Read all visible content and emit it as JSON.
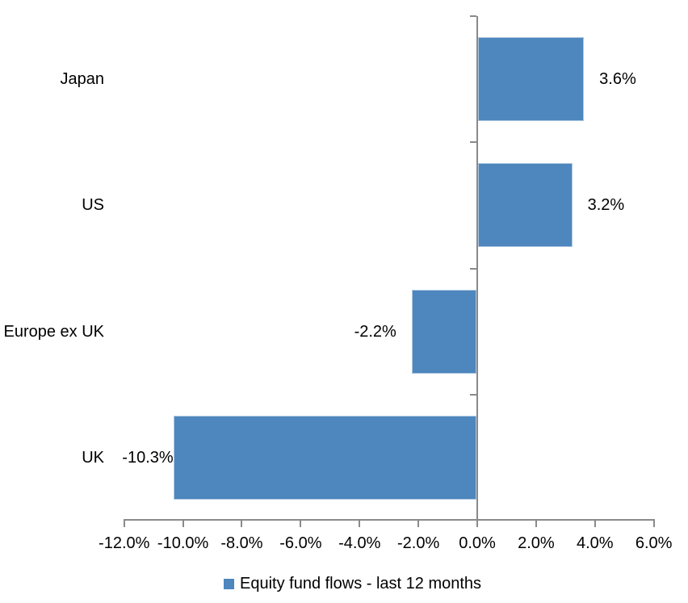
{
  "chart_data": {
    "type": "bar",
    "orientation": "horizontal",
    "title": "",
    "categories": [
      "Japan",
      "US",
      "Europe ex UK",
      "UK"
    ],
    "series": [
      {
        "name": "Equity fund flows - last 12 months",
        "values": [
          3.6,
          3.2,
          -2.2,
          -10.3
        ],
        "data_labels": [
          "3.6%",
          "3.2%",
          "-2.2%",
          "-10.3%"
        ]
      }
    ],
    "x_axis": {
      "tick_values": [
        -12,
        -10,
        -8,
        -6,
        -4,
        -2,
        0,
        2,
        4,
        6
      ],
      "tick_labels": [
        "-12.0%",
        "-10.0%",
        "-8.0%",
        "-6.0%",
        "-4.0%",
        "-2.0%",
        "0.0%",
        "2.0%",
        "4.0%",
        "6.0%"
      ],
      "min": -12,
      "max": 6
    },
    "grid": false,
    "legend_position": "bottom",
    "legend": [
      {
        "label": "Equity fund flows - last 12 months",
        "color": "#4E86BE"
      }
    ],
    "colors": {
      "bar_fill": "#4E86BE",
      "bar_edge": "#AEC8E0",
      "axis": "#8A8A8A",
      "text": "#000000",
      "background": "#FFFFFF"
    }
  }
}
